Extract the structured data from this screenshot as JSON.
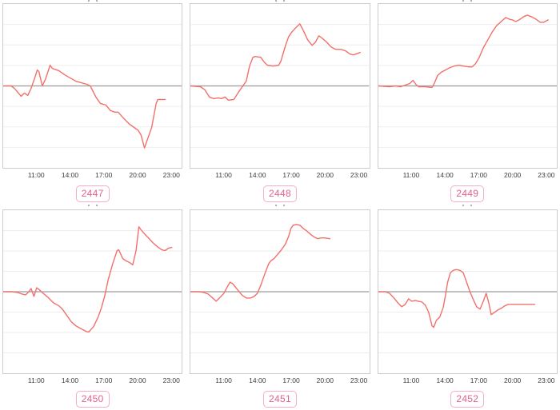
{
  "style": {
    "line_color": "#f2706b",
    "zero_line_color": "#9b9b9b",
    "grid_color": "#ededed",
    "panel_border_color": "#cccccc",
    "tick_text_color": "#3c3c3c",
    "badge_text_color": "#e4608a",
    "badge_border_color": "#f5aec3"
  },
  "chart_data": [
    {
      "type": "line",
      "id_label": "2447",
      "x_ticks": [
        "11:00",
        "14:00",
        "17:00",
        "20:00",
        "23:00"
      ],
      "x_range_hours": [
        8,
        24
      ],
      "y_axis": {
        "zero_line": true,
        "gridlines": 7,
        "range": [
          -103,
          103
        ]
      },
      "legend": "none",
      "points": [
        [
          8.0,
          0
        ],
        [
          8.7,
          0
        ],
        [
          9.0,
          -3
        ],
        [
          9.6,
          -13
        ],
        [
          9.9,
          -9
        ],
        [
          10.2,
          -12
        ],
        [
          10.5,
          -3
        ],
        [
          10.8,
          9
        ],
        [
          11.05,
          20
        ],
        [
          11.2,
          18
        ],
        [
          11.5,
          0
        ],
        [
          11.8,
          9
        ],
        [
          12.2,
          26
        ],
        [
          12.4,
          22
        ],
        [
          13.0,
          19
        ],
        [
          13.5,
          14
        ],
        [
          14.0,
          10
        ],
        [
          14.5,
          6
        ],
        [
          15.0,
          4
        ],
        [
          15.5,
          2
        ],
        [
          15.8,
          0
        ],
        [
          16.3,
          -14
        ],
        [
          16.7,
          -22
        ],
        [
          17.2,
          -24
        ],
        [
          17.6,
          -31
        ],
        [
          18.0,
          -33
        ],
        [
          18.3,
          -33
        ],
        [
          18.8,
          -41
        ],
        [
          19.3,
          -48
        ],
        [
          19.8,
          -53
        ],
        [
          20.1,
          -56
        ],
        [
          20.35,
          -62
        ],
        [
          20.65,
          -78
        ],
        [
          20.95,
          -66
        ],
        [
          21.3,
          -52
        ],
        [
          21.7,
          -22
        ],
        [
          21.85,
          -17
        ],
        [
          22.5,
          -17
        ]
      ]
    },
    {
      "type": "line",
      "id_label": "2448",
      "x_ticks": [
        "11:00",
        "14:00",
        "17:00",
        "20:00",
        "23:00"
      ],
      "x_range_hours": [
        8,
        24
      ],
      "y_axis": {
        "zero_line": true,
        "gridlines": 7,
        "range": [
          -103,
          103
        ]
      },
      "legend": "none",
      "points": [
        [
          8.0,
          0
        ],
        [
          8.9,
          -1
        ],
        [
          9.3,
          -5
        ],
        [
          9.7,
          -14
        ],
        [
          10.1,
          -16
        ],
        [
          10.5,
          -15
        ],
        [
          10.8,
          -16
        ],
        [
          11.1,
          -14
        ],
        [
          11.4,
          -18
        ],
        [
          11.9,
          -17
        ],
        [
          12.3,
          -8
        ],
        [
          12.8,
          2
        ],
        [
          13.0,
          6
        ],
        [
          13.3,
          25
        ],
        [
          13.6,
          36
        ],
        [
          13.8,
          37
        ],
        [
          14.3,
          36
        ],
        [
          14.6,
          30
        ],
        [
          14.9,
          26
        ],
        [
          15.4,
          25
        ],
        [
          15.9,
          26
        ],
        [
          16.1,
          31
        ],
        [
          16.5,
          50
        ],
        [
          16.8,
          62
        ],
        [
          17.1,
          68
        ],
        [
          17.5,
          74
        ],
        [
          17.8,
          78
        ],
        [
          18.1,
          70
        ],
        [
          18.5,
          58
        ],
        [
          18.9,
          51
        ],
        [
          19.2,
          55
        ],
        [
          19.5,
          63
        ],
        [
          19.8,
          60
        ],
        [
          20.2,
          55
        ],
        [
          20.6,
          49
        ],
        [
          21.0,
          46
        ],
        [
          21.5,
          46
        ],
        [
          21.9,
          44
        ],
        [
          22.3,
          40
        ],
        [
          22.6,
          39
        ],
        [
          23.2,
          42
        ]
      ]
    },
    {
      "type": "line",
      "id_label": "2449",
      "x_ticks": [
        "11:00",
        "14:00",
        "17:00",
        "20:00",
        "23:00"
      ],
      "x_range_hours": [
        8,
        24
      ],
      "y_axis": {
        "zero_line": true,
        "gridlines": 7,
        "range": [
          -103,
          103
        ]
      },
      "legend": "none",
      "points": [
        [
          8.0,
          0
        ],
        [
          9.0,
          -1
        ],
        [
          9.5,
          0
        ],
        [
          10.0,
          -1
        ],
        [
          10.4,
          1
        ],
        [
          10.8,
          3
        ],
        [
          11.1,
          7
        ],
        [
          11.35,
          2
        ],
        [
          11.6,
          -1
        ],
        [
          12.2,
          -1
        ],
        [
          12.8,
          -2
        ],
        [
          13.0,
          3
        ],
        [
          13.3,
          13
        ],
        [
          13.6,
          17
        ],
        [
          14.0,
          20
        ],
        [
          14.4,
          23
        ],
        [
          14.8,
          25
        ],
        [
          15.2,
          26
        ],
        [
          15.6,
          25
        ],
        [
          16.0,
          24
        ],
        [
          16.4,
          24
        ],
        [
          16.7,
          28
        ],
        [
          17.0,
          35
        ],
        [
          17.4,
          48
        ],
        [
          17.8,
          58
        ],
        [
          18.2,
          68
        ],
        [
          18.6,
          76
        ],
        [
          19.0,
          81
        ],
        [
          19.4,
          86
        ],
        [
          19.7,
          84
        ],
        [
          20.0,
          83
        ],
        [
          20.3,
          81
        ],
        [
          20.6,
          83
        ],
        [
          21.0,
          87
        ],
        [
          21.35,
          89
        ],
        [
          21.7,
          87
        ],
        [
          22.1,
          84
        ],
        [
          22.5,
          80
        ],
        [
          22.8,
          80
        ],
        [
          23.2,
          83
        ]
      ]
    },
    {
      "type": "line",
      "id_label": "2450",
      "x_ticks": [
        "11:00",
        "14:00",
        "17:00",
        "20:00",
        "23:00"
      ],
      "x_range_hours": [
        8,
        24
      ],
      "y_axis": {
        "zero_line": true,
        "gridlines": 7,
        "range": [
          -103,
          103
        ]
      },
      "legend": "none",
      "points": [
        [
          8.0,
          0
        ],
        [
          8.8,
          0
        ],
        [
          9.3,
          -1
        ],
        [
          9.7,
          -3
        ],
        [
          10.0,
          -4
        ],
        [
          10.3,
          0
        ],
        [
          10.5,
          4
        ],
        [
          10.75,
          -6
        ],
        [
          11.0,
          5
        ],
        [
          11.2,
          3
        ],
        [
          11.5,
          -1
        ],
        [
          12.0,
          -7
        ],
        [
          12.5,
          -14
        ],
        [
          13.0,
          -18
        ],
        [
          13.3,
          -22
        ],
        [
          13.7,
          -30
        ],
        [
          14.1,
          -38
        ],
        [
          14.5,
          -43
        ],
        [
          15.0,
          -47
        ],
        [
          15.4,
          -50
        ],
        [
          15.65,
          -51
        ],
        [
          16.1,
          -44
        ],
        [
          16.5,
          -32
        ],
        [
          16.8,
          -20
        ],
        [
          17.1,
          -5
        ],
        [
          17.4,
          15
        ],
        [
          17.8,
          35
        ],
        [
          18.2,
          52
        ],
        [
          18.35,
          53
        ],
        [
          18.7,
          42
        ],
        [
          19.0,
          39
        ],
        [
          19.3,
          37
        ],
        [
          19.6,
          34
        ],
        [
          19.9,
          52
        ],
        [
          20.15,
          82
        ],
        [
          20.3,
          79
        ],
        [
          20.6,
          74
        ],
        [
          21.0,
          68
        ],
        [
          21.4,
          62
        ],
        [
          21.8,
          57
        ],
        [
          22.2,
          53
        ],
        [
          22.5,
          52
        ],
        [
          22.8,
          55
        ],
        [
          23.1,
          56
        ]
      ]
    },
    {
      "type": "line",
      "id_label": "2451",
      "x_ticks": [
        "11:00",
        "14:00",
        "17:00",
        "20:00",
        "23:00"
      ],
      "x_range_hours": [
        8,
        24
      ],
      "y_axis": {
        "zero_line": true,
        "gridlines": 7,
        "range": [
          -103,
          103
        ]
      },
      "legend": "none",
      "points": [
        [
          8.0,
          0
        ],
        [
          8.8,
          0
        ],
        [
          9.2,
          -1
        ],
        [
          9.6,
          -3
        ],
        [
          10.0,
          -8
        ],
        [
          10.3,
          -12
        ],
        [
          10.6,
          -8
        ],
        [
          11.0,
          -2
        ],
        [
          11.3,
          6
        ],
        [
          11.55,
          12
        ],
        [
          11.8,
          10
        ],
        [
          12.2,
          3
        ],
        [
          12.6,
          -4
        ],
        [
          13.0,
          -8
        ],
        [
          13.4,
          -8
        ],
        [
          13.7,
          -6
        ],
        [
          14.0,
          -2
        ],
        [
          14.3,
          8
        ],
        [
          14.6,
          20
        ],
        [
          15.0,
          35
        ],
        [
          15.2,
          39
        ],
        [
          15.5,
          42
        ],
        [
          15.8,
          47
        ],
        [
          16.1,
          52
        ],
        [
          16.5,
          60
        ],
        [
          16.8,
          70
        ],
        [
          17.0,
          80
        ],
        [
          17.2,
          84
        ],
        [
          17.5,
          85
        ],
        [
          17.8,
          84
        ],
        [
          18.1,
          80
        ],
        [
          18.4,
          77
        ],
        [
          18.8,
          72
        ],
        [
          19.1,
          69
        ],
        [
          19.4,
          67
        ],
        [
          19.7,
          68
        ],
        [
          20.0,
          68
        ],
        [
          20.5,
          67
        ]
      ]
    },
    {
      "type": "line",
      "id_label": "2452",
      "x_ticks": [
        "11:00",
        "14:00",
        "17:00",
        "20:00",
        "23:00"
      ],
      "x_range_hours": [
        8,
        24
      ],
      "y_axis": {
        "zero_line": true,
        "gridlines": 7,
        "range": [
          -103,
          103
        ]
      },
      "legend": "none",
      "points": [
        [
          8.0,
          0
        ],
        [
          8.6,
          0
        ],
        [
          9.0,
          -2
        ],
        [
          9.4,
          -8
        ],
        [
          9.8,
          -15
        ],
        [
          10.1,
          -19
        ],
        [
          10.4,
          -16
        ],
        [
          10.7,
          -9
        ],
        [
          11.0,
          -12
        ],
        [
          11.3,
          -11
        ],
        [
          11.6,
          -12
        ],
        [
          11.9,
          -13
        ],
        [
          12.2,
          -17
        ],
        [
          12.5,
          -26
        ],
        [
          12.8,
          -43
        ],
        [
          12.95,
          -45
        ],
        [
          13.2,
          -36
        ],
        [
          13.5,
          -32
        ],
        [
          13.8,
          -20
        ],
        [
          14.0,
          -5
        ],
        [
          14.2,
          12
        ],
        [
          14.45,
          24
        ],
        [
          14.7,
          27
        ],
        [
          15.0,
          28
        ],
        [
          15.3,
          27
        ],
        [
          15.6,
          24
        ],
        [
          15.9,
          12
        ],
        [
          16.2,
          0
        ],
        [
          16.5,
          -10
        ],
        [
          16.8,
          -19
        ],
        [
          17.1,
          -22
        ],
        [
          17.4,
          -12
        ],
        [
          17.65,
          -2
        ],
        [
          17.9,
          -15
        ],
        [
          18.1,
          -29
        ],
        [
          18.4,
          -26
        ],
        [
          18.7,
          -23
        ],
        [
          19.0,
          -21
        ],
        [
          19.3,
          -18
        ],
        [
          19.6,
          -16
        ],
        [
          20.2,
          -16
        ],
        [
          20.8,
          -16
        ],
        [
          21.4,
          -16
        ],
        [
          22.0,
          -16
        ]
      ]
    }
  ]
}
